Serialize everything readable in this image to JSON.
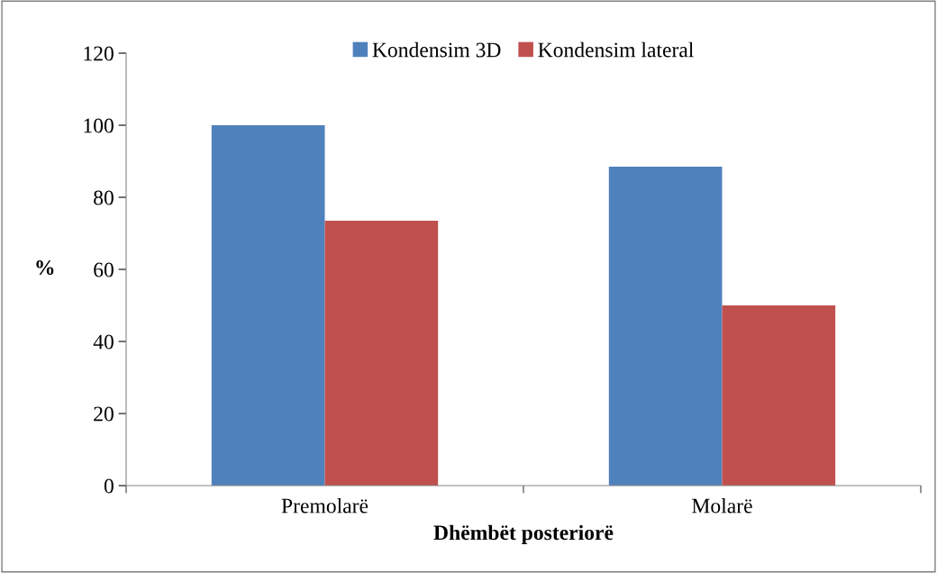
{
  "chart_data": {
    "type": "bar",
    "xlabel": "Dhëmbët posteriorë",
    "ylabel": "%",
    "categories": [
      "Premolarë",
      "Molarë"
    ],
    "series": [
      {
        "name": "Kondensim 3D",
        "color": "#4f81bd",
        "values": [
          100,
          88.5
        ]
      },
      {
        "name": "Kondensim lateral",
        "color": "#c0504d",
        "values": [
          73.5,
          50
        ]
      }
    ],
    "ylim": [
      0,
      120
    ],
    "yticks": [
      0,
      20,
      40,
      60,
      80,
      100,
      120
    ],
    "grid": false,
    "legend": "top"
  }
}
